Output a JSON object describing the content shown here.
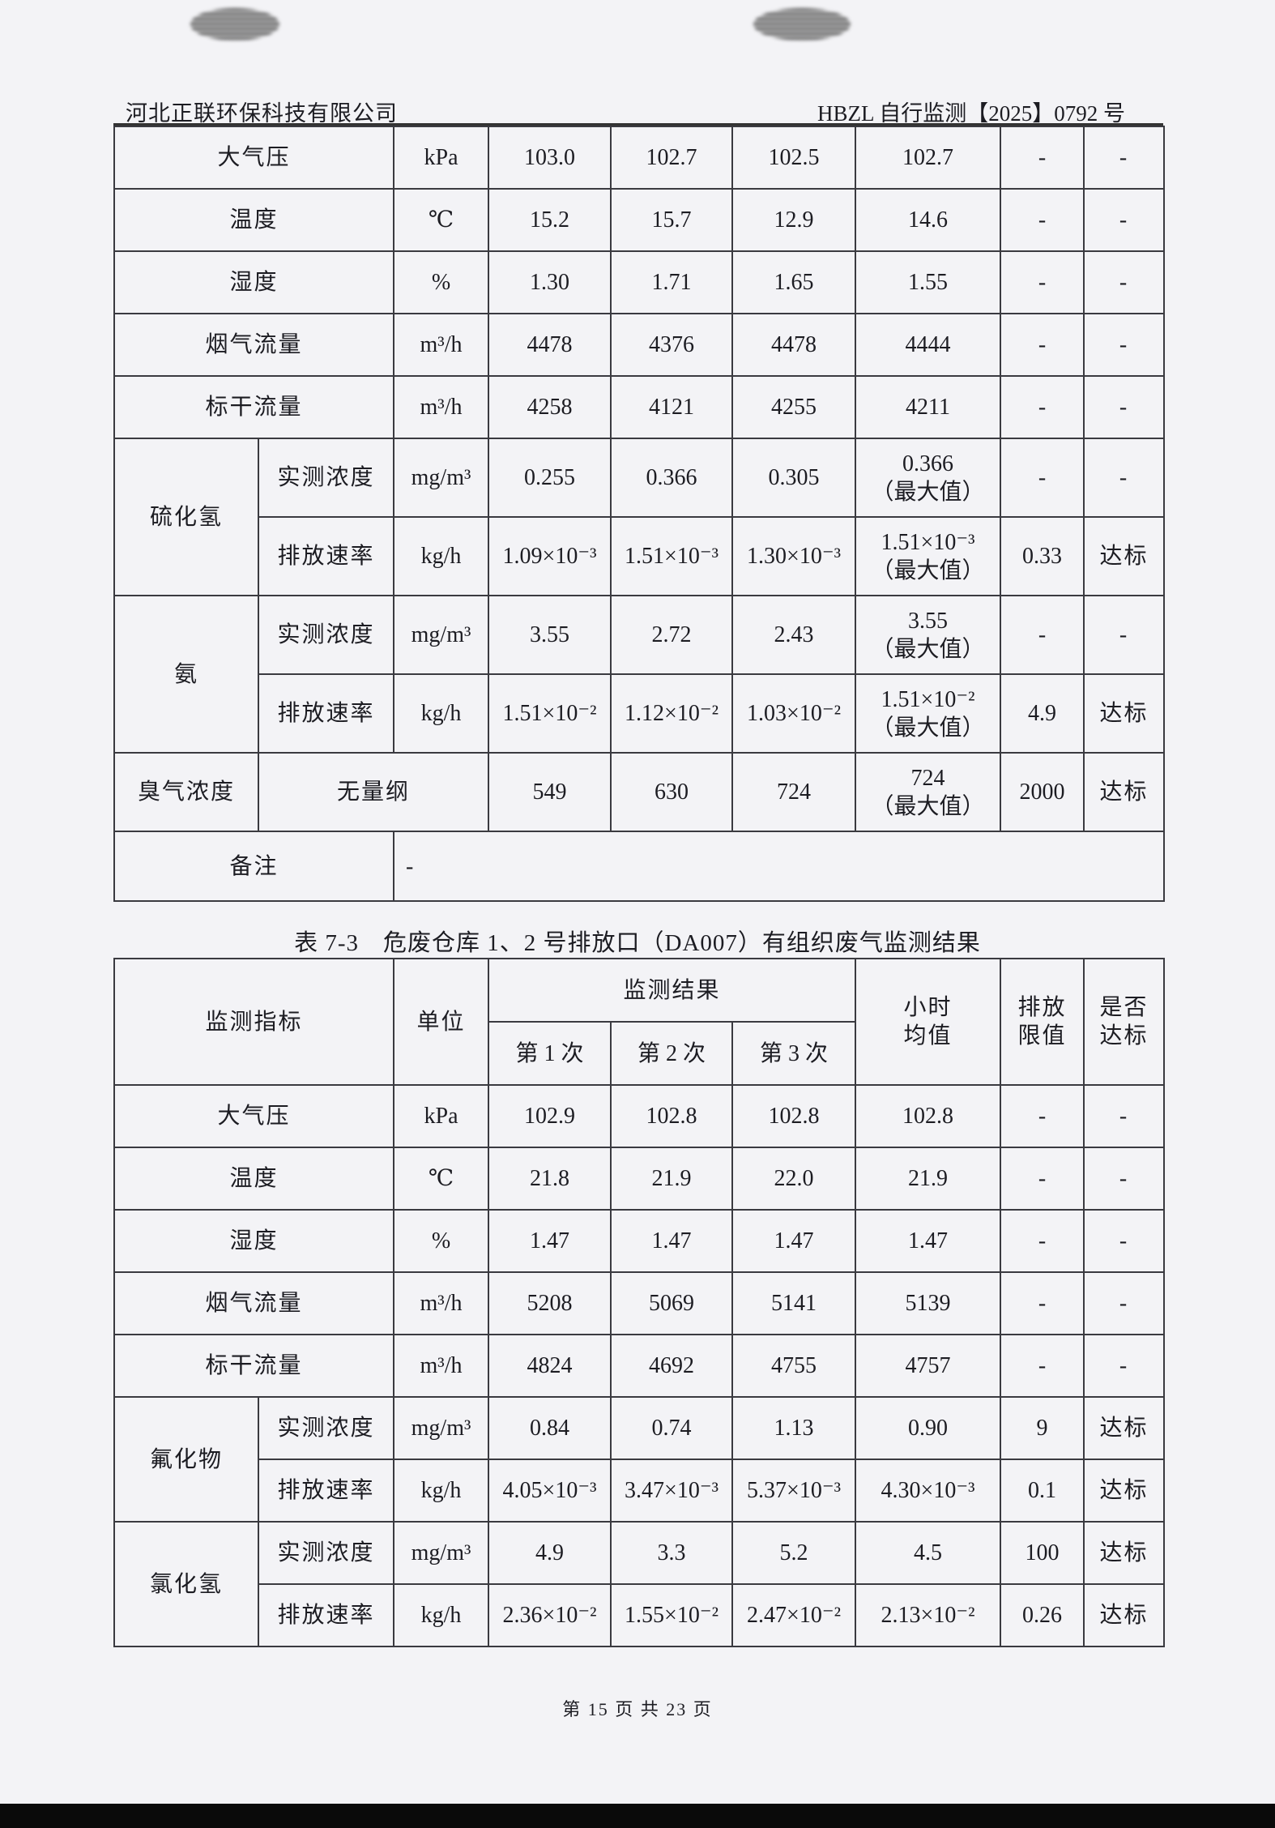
{
  "header": {
    "company": "河北正联环保科技有限公司",
    "report_no": "HBZL 自行监测【2025】0792 号"
  },
  "table1": {
    "rows": [
      {
        "type": "simple",
        "label": "大气压",
        "unit": "kPa",
        "values": [
          "103.0",
          "102.7",
          "102.5",
          "102.7"
        ],
        "limit": "-",
        "result": "-"
      },
      {
        "type": "simple",
        "label": "温度",
        "unit": "℃",
        "values": [
          "15.2",
          "15.7",
          "12.9",
          "14.6"
        ],
        "limit": "-",
        "result": "-"
      },
      {
        "type": "simple",
        "label": "湿度",
        "unit": "%",
        "values": [
          "1.30",
          "1.71",
          "1.65",
          "1.55"
        ],
        "limit": "-",
        "result": "-"
      },
      {
        "type": "simple",
        "label": "烟气流量",
        "unit": "m³/h",
        "values": [
          "4478",
          "4376",
          "4478",
          "4444"
        ],
        "limit": "-",
        "result": "-"
      },
      {
        "type": "simple",
        "label": "标干流量",
        "unit": "m³/h",
        "values": [
          "4258",
          "4121",
          "4255",
          "4211"
        ],
        "limit": "-",
        "result": "-"
      },
      {
        "type": "group",
        "label": "硫化氢",
        "sub": [
          {
            "name": "实测浓度",
            "unit": "mg/m³",
            "values": [
              "0.255",
              "0.366",
              "0.305",
              "0.366\n（最大值）"
            ],
            "limit": "-",
            "result": "-"
          },
          {
            "name": "排放速率",
            "unit": "kg/h",
            "values": [
              "1.09×10⁻³",
              "1.51×10⁻³",
              "1.30×10⁻³",
              "1.51×10⁻³\n（最大值）"
            ],
            "limit": "0.33",
            "result": "达标"
          }
        ]
      },
      {
        "type": "group",
        "label": "氨",
        "sub": [
          {
            "name": "实测浓度",
            "unit": "mg/m³",
            "values": [
              "3.55",
              "2.72",
              "2.43",
              "3.55\n（最大值）"
            ],
            "limit": "-",
            "result": "-"
          },
          {
            "name": "排放速率",
            "unit": "kg/h",
            "values": [
              "1.51×10⁻²",
              "1.12×10⁻²",
              "1.03×10⁻²",
              "1.51×10⁻²\n（最大值）"
            ],
            "limit": "4.9",
            "result": "达标"
          }
        ]
      },
      {
        "type": "odor",
        "label": "臭气浓度",
        "unit": "无量纲",
        "values": [
          "549",
          "630",
          "724",
          "724\n（最大值）"
        ],
        "limit": "2000",
        "result": "达标"
      },
      {
        "type": "remark",
        "label": "备注",
        "value": "-"
      }
    ]
  },
  "table2": {
    "caption": "表 7-3　危废仓库 1、2 号排放口（DA007）有组织废气监测结果",
    "head": {
      "indicator": "监测指标",
      "unit": "单位",
      "results": "监测结果",
      "runs": [
        "第 1 次",
        "第 2 次",
        "第 3 次"
      ],
      "hourly": "小时\n均值",
      "limit": "排放\n限值",
      "compliant": "是否\n达标"
    },
    "rows": [
      {
        "type": "simple",
        "label": "大气压",
        "unit": "kPa",
        "values": [
          "102.9",
          "102.8",
          "102.8",
          "102.8"
        ],
        "limit": "-",
        "result": "-"
      },
      {
        "type": "simple",
        "label": "温度",
        "unit": "℃",
        "values": [
          "21.8",
          "21.9",
          "22.0",
          "21.9"
        ],
        "limit": "-",
        "result": "-"
      },
      {
        "type": "simple",
        "label": "湿度",
        "unit": "%",
        "values": [
          "1.47",
          "1.47",
          "1.47",
          "1.47"
        ],
        "limit": "-",
        "result": "-"
      },
      {
        "type": "simple",
        "label": "烟气流量",
        "unit": "m³/h",
        "values": [
          "5208",
          "5069",
          "5141",
          "5139"
        ],
        "limit": "-",
        "result": "-"
      },
      {
        "type": "simple",
        "label": "标干流量",
        "unit": "m³/h",
        "values": [
          "4824",
          "4692",
          "4755",
          "4757"
        ],
        "limit": "-",
        "result": "-"
      },
      {
        "type": "group",
        "label": "氟化物",
        "sub": [
          {
            "name": "实测浓度",
            "unit": "mg/m³",
            "values": [
              "0.84",
              "0.74",
              "1.13",
              "0.90"
            ],
            "limit": "9",
            "result": "达标"
          },
          {
            "name": "排放速率",
            "unit": "kg/h",
            "values": [
              "4.05×10⁻³",
              "3.47×10⁻³",
              "5.37×10⁻³",
              "4.30×10⁻³"
            ],
            "limit": "0.1",
            "result": "达标"
          }
        ]
      },
      {
        "type": "group",
        "label": "氯化氢",
        "sub": [
          {
            "name": "实测浓度",
            "unit": "mg/m³",
            "values": [
              "4.9",
              "3.3",
              "5.2",
              "4.5"
            ],
            "limit": "100",
            "result": "达标"
          },
          {
            "name": "排放速率",
            "unit": "kg/h",
            "values": [
              "2.36×10⁻²",
              "1.55×10⁻²",
              "2.47×10⁻²",
              "2.13×10⁻²"
            ],
            "limit": "0.26",
            "result": "达标"
          }
        ]
      }
    ]
  },
  "footer": {
    "page": "第 15 页 共 23 页"
  }
}
